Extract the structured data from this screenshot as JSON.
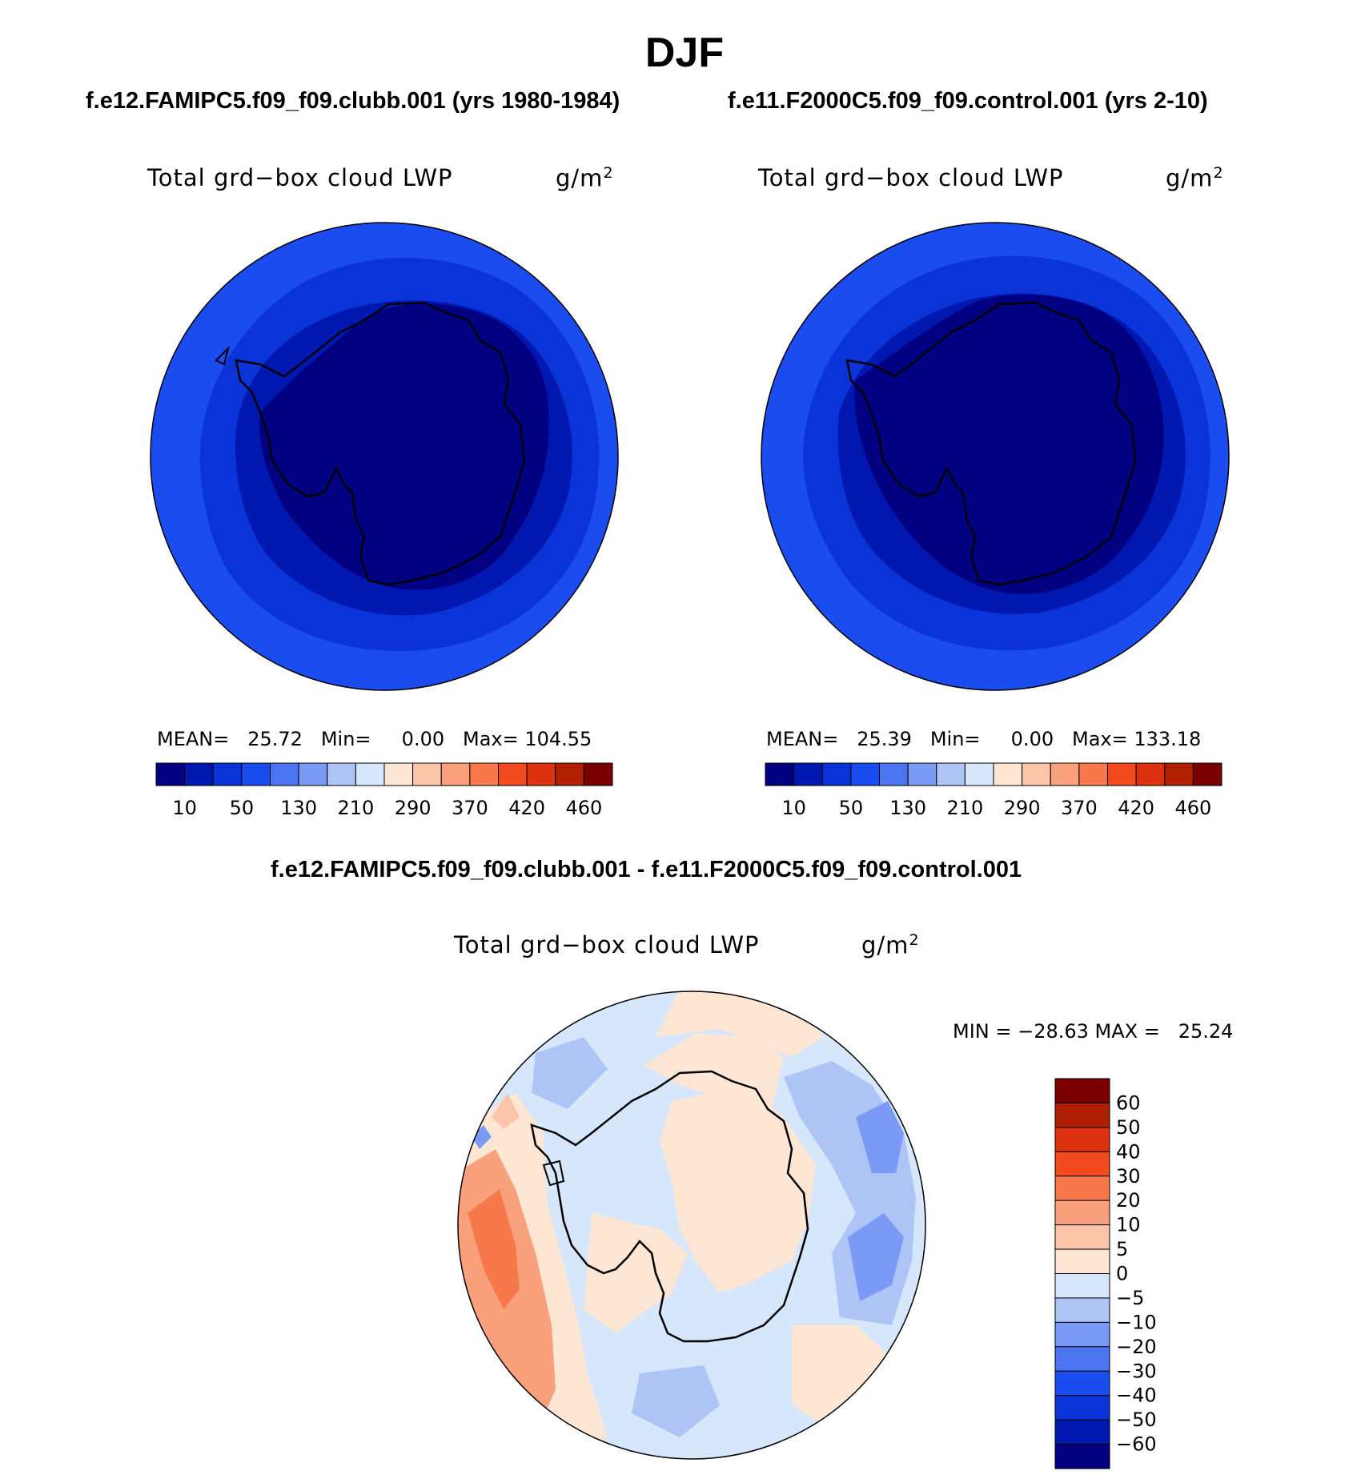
{
  "title": "DJF",
  "panels": [
    {
      "case_title": "f.e12.FAMIPC5.f09_f09.clubb.001 (yrs 1980-1984)",
      "variable": "Total grd−box cloud LWP",
      "units_base": "g/m",
      "units_exp": "2",
      "stats": "MEAN=   25.72   Min=     0.00   Max= 104.55"
    },
    {
      "case_title": "f.e11.F2000C5.f09_f09.control.001 (yrs 2-10)",
      "variable": "Total grd−box cloud LWP",
      "units_base": "g/m",
      "units_exp": "2",
      "stats": "MEAN=   25.39   Min=     0.00   Max= 133.18"
    }
  ],
  "diff_panel": {
    "title": "f.e12.FAMIPC5.f09_f09.clubb.001 - f.e11.F2000C5.f09_f09.control.001",
    "variable": "Total grd−box cloud LWP",
    "units_base": "g/m",
    "units_exp": "2",
    "stats": "MIN = −28.63 MAX =   25.24"
  },
  "colorbar_abs": {
    "colors": [
      "#000080",
      "#0018b0",
      "#0a34d8",
      "#1a4cf0",
      "#4a74f0",
      "#7a9af5",
      "#aec4f5",
      "#d6e6fb",
      "#fde6d4",
      "#fcc4a8",
      "#f9a07c",
      "#f7784a",
      "#f24a1e",
      "#dd3210",
      "#b02000",
      "#7a0000"
    ],
    "tick_labels": [
      "10",
      "50",
      "130",
      "210",
      "290",
      "370",
      "420",
      "460"
    ]
  },
  "colorbar_diff": {
    "colors_top_to_bottom": [
      "#7a0000",
      "#b01e00",
      "#dc3210",
      "#f24a1e",
      "#f7784a",
      "#f9a07c",
      "#fcc4a8",
      "#fde6d4",
      "#d6e6fb",
      "#aec4f5",
      "#7a9af5",
      "#4a74f0",
      "#1a4cf0",
      "#0a34d8",
      "#0018b0",
      "#000080"
    ],
    "tick_labels": [
      "60",
      "50",
      "40",
      "30",
      "20",
      "10",
      "5",
      "0",
      "−5",
      "−10",
      "−20",
      "−30",
      "−40",
      "−50",
      "−60"
    ]
  }
}
